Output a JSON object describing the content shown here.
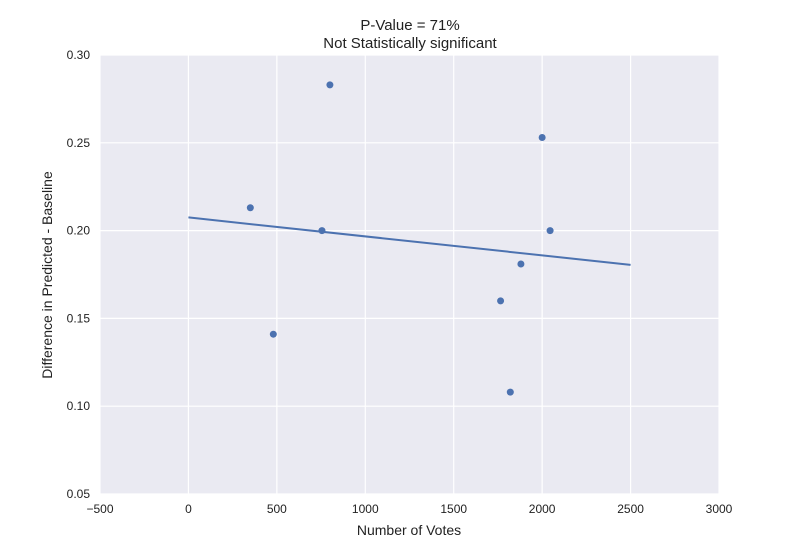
{
  "chart_data": {
    "type": "scatter",
    "title": "P-Value = 71%",
    "subtitle": "Not Statistically significant",
    "xlabel": "Number of Votes",
    "ylabel": "Difference in Predicted - Baseline",
    "xlim": [
      -500,
      3000
    ],
    "ylim": [
      0.05,
      0.3
    ],
    "x_ticks": [
      "−500",
      "0",
      "500",
      "1000",
      "1500",
      "2000",
      "2500",
      "3000"
    ],
    "y_ticks": [
      "0.05",
      "0.10",
      "0.15",
      "0.20",
      "0.25",
      "0.30"
    ],
    "grid": true,
    "background": "#EAEAF2",
    "series": [
      {
        "points": [
          {
            "x": 350,
            "y": 0.213
          },
          {
            "x": 480,
            "y": 0.141
          },
          {
            "x": 755,
            "y": 0.2
          },
          {
            "x": 800,
            "y": 0.283
          },
          {
            "x": 1765,
            "y": 0.16
          },
          {
            "x": 1820,
            "y": 0.108
          },
          {
            "x": 1880,
            "y": 0.181
          },
          {
            "x": 2000,
            "y": 0.253
          },
          {
            "x": 2045,
            "y": 0.2
          }
        ],
        "color": "#4C72B0"
      }
    ],
    "fit_line": {
      "x": [
        0,
        2500
      ],
      "y": [
        0.2075,
        0.1805
      ],
      "color": "#4C72B0"
    }
  }
}
